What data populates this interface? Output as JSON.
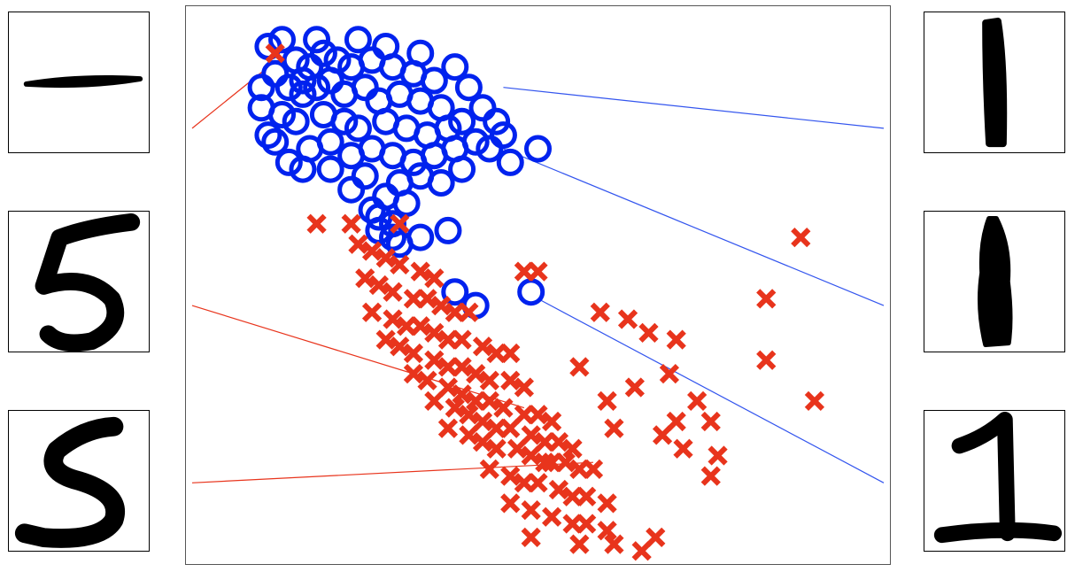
{
  "chart_data": {
    "type": "scatter",
    "title": "",
    "xlabel": "",
    "ylabel": "",
    "grid": false,
    "legend": "none",
    "xlim": [
      0,
      10
    ],
    "ylim": [
      0,
      8
    ],
    "axes_ticks_visible": false,
    "series": [
      {
        "class": "digit-1",
        "marker": "o",
        "color": "#0022ee",
        "points": [
          [
            1.2,
            7.1
          ],
          [
            1.5,
            7.3
          ],
          [
            1.7,
            7.2
          ],
          [
            1.9,
            7.4
          ],
          [
            2.1,
            7.3
          ],
          [
            2.3,
            7.2
          ],
          [
            2.6,
            7.3
          ],
          [
            2.9,
            7.2
          ],
          [
            3.2,
            7.1
          ],
          [
            3.5,
            7.0
          ],
          [
            1.4,
            6.9
          ],
          [
            1.6,
            6.8
          ],
          [
            1.8,
            6.9
          ],
          [
            2.0,
            7.0
          ],
          [
            2.2,
            6.8
          ],
          [
            2.5,
            6.9
          ],
          [
            2.7,
            6.7
          ],
          [
            3.0,
            6.8
          ],
          [
            3.3,
            6.7
          ],
          [
            3.6,
            6.6
          ],
          [
            1.3,
            6.5
          ],
          [
            1.5,
            6.4
          ],
          [
            1.9,
            6.5
          ],
          [
            2.2,
            6.4
          ],
          [
            2.4,
            6.3
          ],
          [
            2.8,
            6.4
          ],
          [
            3.1,
            6.3
          ],
          [
            3.4,
            6.2
          ],
          [
            3.7,
            6.3
          ],
          [
            3.9,
            6.4
          ],
          [
            1.2,
            6.1
          ],
          [
            1.7,
            6.0
          ],
          [
            2.0,
            6.1
          ],
          [
            2.3,
            5.9
          ],
          [
            2.6,
            6.0
          ],
          [
            2.9,
            5.9
          ],
          [
            3.2,
            5.8
          ],
          [
            3.5,
            5.9
          ],
          [
            3.8,
            6.0
          ],
          [
            4.1,
            6.1
          ],
          [
            1.1,
            7.5
          ],
          [
            1.3,
            7.6
          ],
          [
            1.8,
            7.6
          ],
          [
            2.4,
            7.6
          ],
          [
            2.8,
            7.5
          ],
          [
            3.3,
            7.4
          ],
          [
            3.8,
            7.2
          ],
          [
            4.0,
            6.9
          ],
          [
            4.2,
            6.6
          ],
          [
            4.4,
            6.4
          ],
          [
            2.0,
            5.7
          ],
          [
            2.5,
            5.6
          ],
          [
            3.0,
            5.5
          ],
          [
            3.3,
            5.6
          ],
          [
            3.6,
            5.5
          ],
          [
            2.3,
            5.4
          ],
          [
            2.8,
            5.3
          ],
          [
            3.1,
            5.2
          ],
          [
            2.7,
            5.0
          ],
          [
            2.9,
            4.9
          ],
          [
            1.0,
            6.6
          ],
          [
            1.1,
            6.2
          ],
          [
            1.4,
            5.8
          ],
          [
            1.6,
            5.7
          ],
          [
            4.3,
            6.0
          ],
          [
            4.6,
            5.8
          ],
          [
            5.0,
            6.0
          ],
          [
            4.5,
            6.2
          ],
          [
            2.6,
            5.1
          ],
          [
            3.3,
            4.7
          ],
          [
            2.7,
            4.8
          ],
          [
            2.9,
            4.7
          ],
          [
            3.0,
            4.6
          ],
          [
            3.7,
            4.8
          ],
          [
            3.8,
            3.9
          ],
          [
            4.1,
            3.7
          ],
          [
            4.9,
            3.9
          ],
          [
            1.0,
            6.9
          ],
          [
            1.6,
            7.0
          ],
          [
            3.9,
            5.7
          ]
        ]
      },
      {
        "class": "digit-5",
        "marker": "x",
        "color": "#e8341c",
        "points": [
          [
            1.2,
            7.4
          ],
          [
            1.8,
            4.9
          ],
          [
            2.3,
            4.9
          ],
          [
            3.0,
            4.9
          ],
          [
            2.4,
            4.6
          ],
          [
            2.6,
            4.5
          ],
          [
            2.8,
            4.4
          ],
          [
            3.0,
            4.3
          ],
          [
            3.3,
            4.2
          ],
          [
            3.5,
            4.1
          ],
          [
            4.8,
            4.2
          ],
          [
            5.0,
            4.2
          ],
          [
            2.5,
            4.1
          ],
          [
            2.7,
            4.0
          ],
          [
            2.9,
            3.9
          ],
          [
            3.2,
            3.8
          ],
          [
            3.4,
            3.8
          ],
          [
            3.6,
            3.7
          ],
          [
            3.8,
            3.6
          ],
          [
            4.0,
            3.6
          ],
          [
            2.6,
            3.6
          ],
          [
            2.9,
            3.5
          ],
          [
            3.1,
            3.4
          ],
          [
            3.3,
            3.4
          ],
          [
            3.5,
            3.3
          ],
          [
            3.7,
            3.2
          ],
          [
            3.9,
            3.2
          ],
          [
            4.2,
            3.1
          ],
          [
            4.4,
            3.0
          ],
          [
            4.6,
            3.0
          ],
          [
            2.8,
            3.2
          ],
          [
            3.0,
            3.1
          ],
          [
            3.2,
            3.0
          ],
          [
            3.5,
            2.9
          ],
          [
            3.7,
            2.8
          ],
          [
            3.9,
            2.8
          ],
          [
            4.1,
            2.7
          ],
          [
            4.3,
            2.6
          ],
          [
            4.6,
            2.6
          ],
          [
            4.8,
            2.5
          ],
          [
            3.2,
            2.7
          ],
          [
            3.4,
            2.6
          ],
          [
            3.7,
            2.5
          ],
          [
            3.9,
            2.4
          ],
          [
            4.1,
            2.3
          ],
          [
            4.3,
            2.3
          ],
          [
            4.5,
            2.2
          ],
          [
            4.8,
            2.1
          ],
          [
            5.0,
            2.1
          ],
          [
            5.2,
            2.0
          ],
          [
            3.5,
            2.3
          ],
          [
            3.8,
            2.2
          ],
          [
            4.0,
            2.1
          ],
          [
            4.2,
            2.0
          ],
          [
            4.4,
            1.9
          ],
          [
            4.6,
            1.9
          ],
          [
            4.9,
            1.8
          ],
          [
            5.1,
            1.7
          ],
          [
            5.3,
            1.7
          ],
          [
            5.5,
            1.6
          ],
          [
            3.7,
            1.9
          ],
          [
            4.0,
            1.8
          ],
          [
            4.2,
            1.7
          ],
          [
            4.4,
            1.6
          ],
          [
            4.7,
            1.6
          ],
          [
            4.9,
            1.5
          ],
          [
            5.1,
            1.4
          ],
          [
            5.4,
            1.4
          ],
          [
            5.6,
            1.3
          ],
          [
            5.8,
            1.3
          ],
          [
            4.3,
            1.3
          ],
          [
            4.6,
            1.2
          ],
          [
            4.8,
            1.1
          ],
          [
            5.0,
            1.1
          ],
          [
            5.3,
            1.0
          ],
          [
            5.5,
            0.9
          ],
          [
            5.7,
            0.9
          ],
          [
            6.0,
            0.8
          ],
          [
            4.6,
            0.8
          ],
          [
            4.9,
            0.7
          ],
          [
            5.2,
            0.6
          ],
          [
            5.5,
            0.5
          ],
          [
            5.7,
            0.5
          ],
          [
            6.0,
            0.4
          ],
          [
            4.9,
            0.3
          ],
          [
            5.6,
            0.2
          ],
          [
            6.1,
            0.2
          ],
          [
            6.5,
            0.1
          ],
          [
            6.7,
            0.3
          ],
          [
            5.2,
            1.4
          ],
          [
            5.9,
            3.6
          ],
          [
            6.3,
            3.5
          ],
          [
            6.6,
            3.3
          ],
          [
            7.0,
            3.2
          ],
          [
            6.9,
            2.7
          ],
          [
            7.3,
            2.3
          ],
          [
            7.5,
            2.0
          ],
          [
            7.1,
            1.6
          ],
          [
            7.6,
            1.5
          ],
          [
            7.5,
            1.2
          ],
          [
            8.3,
            3.8
          ],
          [
            8.3,
            2.9
          ],
          [
            8.8,
            4.7
          ],
          [
            9.0,
            2.3
          ],
          [
            6.1,
            1.9
          ],
          [
            6.4,
            2.5
          ],
          [
            5.6,
            2.8
          ],
          [
            6.0,
            2.3
          ],
          [
            6.8,
            1.8
          ],
          [
            7.0,
            2.0
          ]
        ]
      }
    ],
    "lines": [
      {
        "class": "digit-1",
        "color": "#3355ee",
        "from": [
          4.5,
          6.9
        ],
        "to": [
          10.0,
          6.3
        ]
      },
      {
        "class": "digit-1",
        "color": "#3355ee",
        "from": [
          4.5,
          6.0
        ],
        "to": [
          10.0,
          3.7
        ]
      },
      {
        "class": "digit-1",
        "color": "#3355ee",
        "from": [
          5.0,
          3.8
        ],
        "to": [
          10.0,
          1.1
        ]
      },
      {
        "class": "digit-5",
        "color": "#e8341c",
        "from": [
          0.0,
          6.3
        ],
        "to": [
          1.1,
          7.2
        ]
      },
      {
        "class": "digit-5",
        "color": "#e8341c",
        "from": [
          0.0,
          3.7
        ],
        "to": [
          4.8,
          2.2
        ]
      },
      {
        "class": "digit-5",
        "color": "#e8341c",
        "from": [
          0.0,
          1.1
        ],
        "to": [
          5.8,
          1.4
        ]
      }
    ]
  },
  "left_digits": [
    {
      "digit": "1",
      "shape": "horizontal-stroke"
    },
    {
      "digit": "5",
      "shape": "upright-five"
    },
    {
      "digit": "5",
      "shape": "slanted-five"
    }
  ],
  "right_digits": [
    {
      "digit": "1",
      "shape": "vertical-stroke"
    },
    {
      "digit": "1",
      "shape": "vertical-blob"
    },
    {
      "digit": "1",
      "shape": "serif-one"
    }
  ]
}
